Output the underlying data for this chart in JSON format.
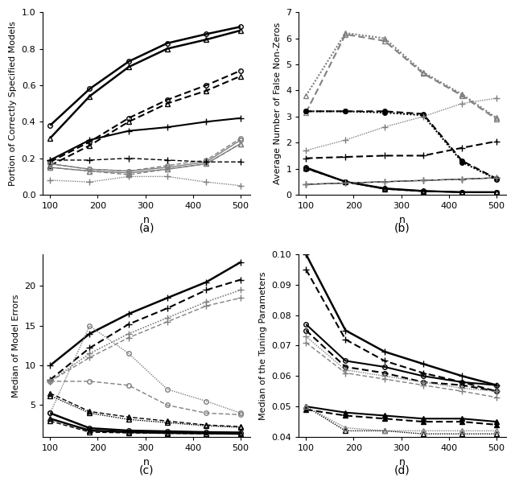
{
  "n": [
    100,
    183,
    265,
    346,
    428,
    500
  ],
  "panel_a": {
    "title": "(a)",
    "ylabel": "Portion of Correctly Specified Models",
    "xlabel": "n",
    "ylim": [
      0.0,
      1.0
    ],
    "yticks": [
      0.0,
      0.2,
      0.4,
      0.6,
      0.8,
      1.0
    ],
    "series": [
      {
        "values": [
          0.38,
          0.58,
          0.73,
          0.83,
          0.88,
          0.92
        ],
        "style": "solid",
        "color": "black",
        "marker": "o",
        "lw": 1.8,
        "filled": false
      },
      {
        "values": [
          0.31,
          0.54,
          0.7,
          0.8,
          0.85,
          0.9
        ],
        "style": "solid",
        "color": "black",
        "marker": "^",
        "lw": 1.8,
        "filled": false
      },
      {
        "values": [
          0.18,
          0.29,
          0.42,
          0.52,
          0.6,
          0.68
        ],
        "style": "dashed",
        "color": "black",
        "marker": "o",
        "lw": 1.5,
        "filled": false
      },
      {
        "values": [
          0.16,
          0.27,
          0.4,
          0.5,
          0.57,
          0.65
        ],
        "style": "dashed",
        "color": "black",
        "marker": "^",
        "lw": 1.5,
        "filled": false
      },
      {
        "values": [
          0.19,
          0.3,
          0.35,
          0.37,
          0.4,
          0.42
        ],
        "style": "solid",
        "color": "black",
        "marker": "+",
        "lw": 1.5,
        "filled": true
      },
      {
        "values": [
          0.17,
          0.14,
          0.13,
          0.15,
          0.18,
          0.3
        ],
        "style": "solid",
        "color": "gray",
        "marker": "o",
        "lw": 1.0,
        "filled": false
      },
      {
        "values": [
          0.15,
          0.13,
          0.12,
          0.14,
          0.17,
          0.28
        ],
        "style": "solid",
        "color": "gray",
        "marker": "^",
        "lw": 1.0,
        "filled": false
      },
      {
        "values": [
          0.17,
          0.14,
          0.13,
          0.16,
          0.19,
          0.31
        ],
        "style": "dashed",
        "color": "gray",
        "marker": "o",
        "lw": 1.0,
        "filled": false
      },
      {
        "values": [
          0.15,
          0.13,
          0.11,
          0.14,
          0.17,
          0.28
        ],
        "style": "dashed",
        "color": "gray",
        "marker": "^",
        "lw": 1.0,
        "filled": false
      },
      {
        "values": [
          0.19,
          0.19,
          0.2,
          0.19,
          0.18,
          0.18
        ],
        "style": "dashed",
        "color": "black",
        "marker": "+",
        "lw": 1.0,
        "filled": true
      },
      {
        "values": [
          0.08,
          0.07,
          0.1,
          0.1,
          0.07,
          0.05
        ],
        "style": "dotted",
        "color": "gray",
        "marker": "+",
        "lw": 1.0,
        "filled": true
      }
    ]
  },
  "panel_b": {
    "title": "(b)",
    "ylabel": "Average Number of False Non-Zeros",
    "xlabel": "n",
    "ylim": [
      0.0,
      7.0
    ],
    "yticks": [
      0,
      1,
      2,
      3,
      4,
      5,
      6,
      7
    ],
    "series": [
      {
        "values": [
          3.8,
          6.2,
          6.0,
          4.7,
          3.85,
          2.95
        ],
        "style": "dotted",
        "color": "gray",
        "marker": "^",
        "lw": 1.5,
        "filled": false
      },
      {
        "values": [
          3.15,
          6.15,
          5.9,
          4.65,
          3.8,
          2.9
        ],
        "style": "dashed",
        "color": "gray",
        "marker": "^",
        "lw": 1.5,
        "filled": false
      },
      {
        "values": [
          3.2,
          3.2,
          3.2,
          3.1,
          1.3,
          0.62
        ],
        "style": "dashed",
        "color": "black",
        "marker": "o",
        "lw": 1.5,
        "filled": true
      },
      {
        "values": [
          3.2,
          3.2,
          3.15,
          3.05,
          1.25,
          0.6
        ],
        "style": "dotted",
        "color": "black",
        "marker": "o",
        "lw": 1.5,
        "filled": true
      },
      {
        "values": [
          1.7,
          2.1,
          2.6,
          3.0,
          3.5,
          3.7
        ],
        "style": "dotted",
        "color": "gray",
        "marker": "+",
        "lw": 1.0,
        "filled": true
      },
      {
        "values": [
          1.4,
          1.45,
          1.5,
          1.5,
          1.8,
          2.05
        ],
        "style": "dashed",
        "color": "black",
        "marker": "+",
        "lw": 1.5,
        "filled": true
      },
      {
        "values": [
          1.05,
          0.5,
          0.25,
          0.15,
          0.1,
          0.1
        ],
        "style": "solid",
        "color": "black",
        "marker": "o",
        "lw": 1.5,
        "filled": false
      },
      {
        "values": [
          1.02,
          0.5,
          0.23,
          0.14,
          0.1,
          0.1
        ],
        "style": "solid",
        "color": "black",
        "marker": "^",
        "lw": 1.5,
        "filled": false
      },
      {
        "values": [
          1.0,
          0.5,
          0.22,
          0.13,
          0.1,
          0.1
        ],
        "style": "dashed",
        "color": "black",
        "marker": "o",
        "lw": 1.0,
        "filled": false
      },
      {
        "values": [
          0.4,
          0.45,
          0.5,
          0.55,
          0.6,
          0.65
        ],
        "style": "solid",
        "color": "black",
        "marker": "+",
        "lw": 1.0,
        "filled": true
      },
      {
        "values": [
          0.4,
          0.45,
          0.5,
          0.55,
          0.6,
          0.65
        ],
        "style": "dashed",
        "color": "gray",
        "marker": "+",
        "lw": 1.0,
        "filled": true
      }
    ]
  },
  "panel_c": {
    "title": "(c)",
    "ylabel": "Median of Model Errors",
    "xlabel": "n",
    "ylim": [
      1.0,
      24.0
    ],
    "yticks": [
      5,
      10,
      15,
      20
    ],
    "series": [
      {
        "values": [
          10.0,
          14.0,
          16.5,
          18.5,
          20.5,
          23.0
        ],
        "style": "solid",
        "color": "black",
        "marker": "+",
        "lw": 1.8,
        "filled": true
      },
      {
        "values": [
          8.2,
          12.2,
          15.2,
          17.2,
          19.5,
          20.8
        ],
        "style": "dashed",
        "color": "black",
        "marker": "+",
        "lw": 1.5,
        "filled": true
      },
      {
        "values": [
          8.0,
          11.5,
          14.0,
          16.0,
          18.0,
          19.5
        ],
        "style": "dotted",
        "color": "gray",
        "marker": "+",
        "lw": 1.2,
        "filled": true
      },
      {
        "values": [
          8.0,
          11.0,
          13.5,
          15.5,
          17.5,
          18.5
        ],
        "style": "dashed",
        "color": "gray",
        "marker": "+",
        "lw": 1.0,
        "filled": true
      },
      {
        "values": [
          4.0,
          15.0,
          11.5,
          7.0,
          5.5,
          4.0
        ],
        "style": "dotted",
        "color": "gray",
        "marker": "o",
        "lw": 1.0,
        "filled": false
      },
      {
        "values": [
          8.0,
          8.0,
          7.5,
          5.0,
          4.0,
          3.8
        ],
        "style": "dashed",
        "color": "gray",
        "marker": "o",
        "lw": 1.0,
        "filled": false
      },
      {
        "values": [
          6.5,
          4.2,
          3.5,
          3.0,
          2.5,
          2.3
        ],
        "style": "dashed",
        "color": "black",
        "marker": "^",
        "lw": 1.0,
        "filled": false
      },
      {
        "values": [
          6.2,
          4.0,
          3.2,
          2.8,
          2.4,
          2.2
        ],
        "style": "dotted",
        "color": "black",
        "marker": "^",
        "lw": 1.0,
        "filled": false
      },
      {
        "values": [
          4.0,
          2.1,
          1.8,
          1.7,
          1.6,
          1.55
        ],
        "style": "solid",
        "color": "black",
        "marker": "o",
        "lw": 1.8,
        "filled": false
      },
      {
        "values": [
          3.3,
          1.8,
          1.6,
          1.5,
          1.45,
          1.4
        ],
        "style": "solid",
        "color": "black",
        "marker": "^",
        "lw": 1.8,
        "filled": false
      },
      {
        "values": [
          3.0,
          1.6,
          1.5,
          1.45,
          1.4,
          1.35
        ],
        "style": "dashed",
        "color": "black",
        "marker": "^",
        "lw": 1.0,
        "filled": false
      }
    ]
  },
  "panel_d": {
    "title": "(d)",
    "ylabel": "Median of the Tuning Parameters",
    "xlabel": "n",
    "ylim": [
      0.04,
      0.1
    ],
    "yticks": [
      0.04,
      0.05,
      0.06,
      0.07,
      0.08,
      0.09,
      0.1
    ],
    "series": [
      {
        "values": [
          0.1,
          0.075,
          0.068,
          0.064,
          0.06,
          0.057
        ],
        "style": "solid",
        "color": "black",
        "marker": "+",
        "lw": 1.8,
        "filled": true
      },
      {
        "values": [
          0.095,
          0.072,
          0.065,
          0.061,
          0.058,
          0.055
        ],
        "style": "dashed",
        "color": "black",
        "marker": "+",
        "lw": 1.5,
        "filled": true
      },
      {
        "values": [
          0.077,
          0.065,
          0.063,
          0.06,
          0.058,
          0.057
        ],
        "style": "solid",
        "color": "black",
        "marker": "o",
        "lw": 1.5,
        "filled": false
      },
      {
        "values": [
          0.075,
          0.063,
          0.061,
          0.058,
          0.057,
          0.055
        ],
        "style": "dashed",
        "color": "black",
        "marker": "o",
        "lw": 1.5,
        "filled": false
      },
      {
        "values": [
          0.073,
          0.062,
          0.06,
          0.058,
          0.056,
          0.055
        ],
        "style": "dotted",
        "color": "gray",
        "marker": "+",
        "lw": 1.0,
        "filled": true
      },
      {
        "values": [
          0.071,
          0.061,
          0.059,
          0.057,
          0.055,
          0.053
        ],
        "style": "dashed",
        "color": "gray",
        "marker": "+",
        "lw": 1.0,
        "filled": true
      },
      {
        "values": [
          0.05,
          0.048,
          0.047,
          0.046,
          0.046,
          0.045
        ],
        "style": "solid",
        "color": "black",
        "marker": "^",
        "lw": 1.5,
        "filled": true
      },
      {
        "values": [
          0.049,
          0.047,
          0.046,
          0.045,
          0.045,
          0.044
        ],
        "style": "dashed",
        "color": "black",
        "marker": "^",
        "lw": 1.5,
        "filled": true
      },
      {
        "values": [
          0.05,
          0.042,
          0.042,
          0.041,
          0.041,
          0.041
        ],
        "style": "dotted",
        "color": "black",
        "marker": "^",
        "lw": 1.0,
        "filled": false
      },
      {
        "values": [
          0.05,
          0.043,
          0.042,
          0.042,
          0.042,
          0.042
        ],
        "style": "dotted",
        "color": "gray",
        "marker": "^",
        "lw": 1.0,
        "filled": false
      }
    ]
  }
}
